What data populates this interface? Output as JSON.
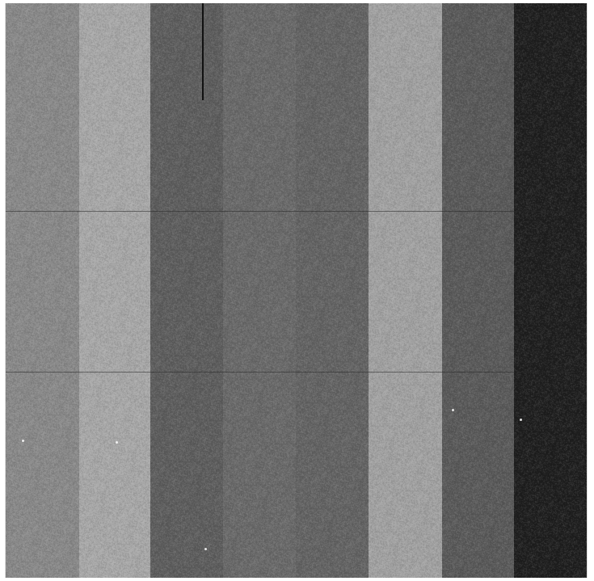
{
  "image": {
    "kind": "grayscale-noise-stripes",
    "stripes": [
      {
        "name": "stripe-1",
        "color": "#8a8a8a",
        "width": 91
      },
      {
        "name": "stripe-2",
        "color": "#a9a9a9",
        "width": 88
      },
      {
        "name": "stripe-3",
        "color": "#5e5e5e",
        "width": 90
      },
      {
        "name": "stripe-4",
        "color": "#6a6a6a",
        "width": 90
      },
      {
        "name": "stripe-5",
        "color": "#646464",
        "width": 90
      },
      {
        "name": "stripe-6",
        "color": "#a3a3a3",
        "width": 91
      },
      {
        "name": "stripe-7",
        "color": "#5a5a5a",
        "width": 89
      },
      {
        "name": "stripe-8",
        "color": "#1e1e1e",
        "width": 90
      }
    ]
  }
}
